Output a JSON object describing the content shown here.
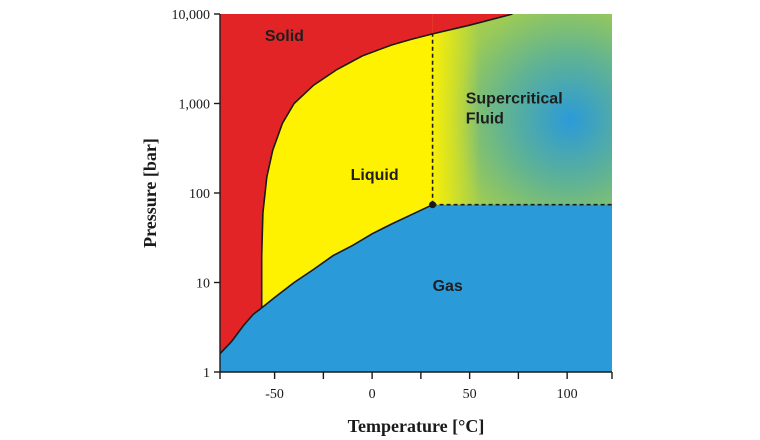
{
  "chart_data": {
    "type": "area",
    "title": "",
    "xlabel": "Temperature [°C]",
    "ylabel": "Pressure [bar]",
    "xlim": [
      -78,
      123
    ],
    "ylim": [
      1,
      10000
    ],
    "y_scale": "log",
    "grid": false,
    "x_ticks": [
      {
        "value": -50,
        "label": "-50"
      },
      {
        "value": 0,
        "label": "0"
      },
      {
        "value": 50,
        "label": "50"
      },
      {
        "value": 100,
        "label": "100"
      }
    ],
    "x_minor_ticks": [
      -25,
      25,
      75
    ],
    "y_ticks": [
      {
        "value": 1,
        "label": "1"
      },
      {
        "value": 10,
        "label": "10"
      },
      {
        "value": 100,
        "label": "100"
      },
      {
        "value": 1000,
        "label": "1,000"
      },
      {
        "value": 10000,
        "label": "10,000"
      }
    ],
    "regions": [
      {
        "name": "Solid",
        "label": "Solid",
        "color": "#e32427",
        "label_at": {
          "x": -55,
          "y": 5000
        }
      },
      {
        "name": "Liquid",
        "label": "Liquid",
        "color": "#fff200",
        "label_at": {
          "x": -11,
          "y": 140
        }
      },
      {
        "name": "Gas",
        "label": "Gas",
        "color": "#2b9ad8",
        "label_at": {
          "x": 31,
          "y": 8
        }
      },
      {
        "name": "Supercritical Fluid",
        "label": "Supercritical\nFluid",
        "color": "#2b9ad8",
        "label_at": {
          "x": 48,
          "y": 1000
        }
      }
    ],
    "boundaries": {
      "sublimation_curve": [
        [
          -78,
          1.6
        ],
        [
          -72,
          2.2
        ],
        [
          -66,
          3.3
        ],
        [
          -61,
          4.4
        ],
        [
          -56.6,
          5.2
        ]
      ],
      "vaporization_curve": [
        [
          -56.6,
          5.2
        ],
        [
          -50,
          6.8
        ],
        [
          -40,
          10
        ],
        [
          -30,
          14
        ],
        [
          -20,
          20
        ],
        [
          -10,
          26
        ],
        [
          0,
          35
        ],
        [
          10,
          45
        ],
        [
          20,
          57
        ],
        [
          31,
          74
        ]
      ],
      "melting_curve": [
        [
          -56.6,
          5.2
        ],
        [
          -56.6,
          20
        ],
        [
          -56,
          60
        ],
        [
          -54,
          150
        ],
        [
          -51,
          300
        ],
        [
          -46,
          600
        ],
        [
          -40,
          1000
        ],
        [
          -30,
          1600
        ],
        [
          -18,
          2400
        ],
        [
          -5,
          3400
        ],
        [
          10,
          4500
        ],
        [
          20,
          5200
        ],
        [
          31,
          6000
        ],
        [
          50,
          7500
        ],
        [
          72,
          10000
        ]
      ],
      "supercritical_boundary_temperature": 31,
      "supercritical_boundary_pressure": 74
    },
    "critical_point": {
      "x": 31,
      "y": 74
    },
    "triple_point": {
      "x": -56.6,
      "y": 5.2
    }
  }
}
